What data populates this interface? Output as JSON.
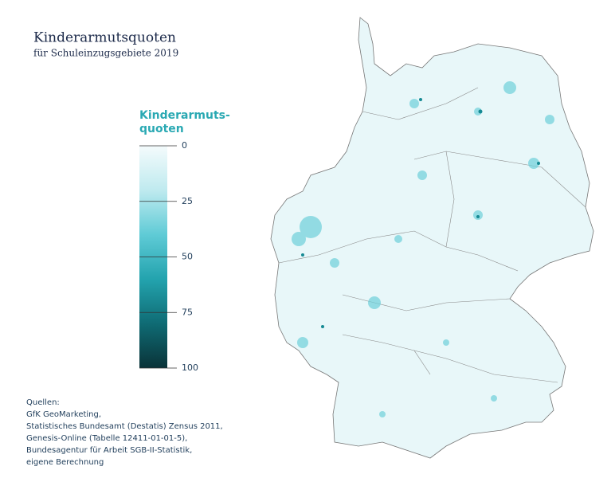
{
  "header": {
    "title": "Kinderarmutsquoten",
    "subtitle": "für Schuleinzugsgebiete 2019"
  },
  "legend": {
    "title_lines": [
      "Kinderarmuts-",
      "quoten"
    ],
    "range": [
      0,
      100
    ],
    "ticks": [
      0,
      25,
      50,
      75,
      100
    ],
    "colors": [
      "#f4fbfc",
      "#bfeaef",
      "#5fcbd6",
      "#23a3ae",
      "#0f6b74",
      "#0a3338"
    ]
  },
  "sources": [
    "Quellen:",
    "GfK GeoMarketing,",
    "Statistisches Bundesamt (Destatis) Zensus 2011,",
    "Genesis-Online (Tabelle 12411-01-01-5),",
    "Bundesagentur für Arbeit SGB-II-Statistik,",
    "eigene Berechnung"
  ]
}
